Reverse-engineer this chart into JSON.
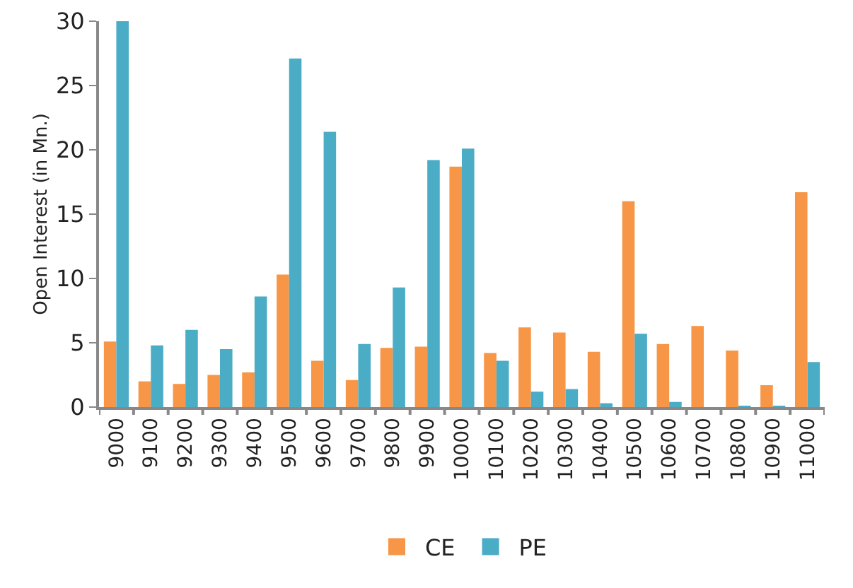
{
  "chart_data": {
    "type": "bar",
    "ylabel": "Open Interest (in Mn.)",
    "categories": [
      "9000",
      "9100",
      "9200",
      "9300",
      "9400",
      "9500",
      "9600",
      "9700",
      "9800",
      "9900",
      "10000",
      "10100",
      "10200",
      "10300",
      "10400",
      "10500",
      "10600",
      "10700",
      "10800",
      "10900",
      "11000"
    ],
    "series": [
      {
        "name": "CE",
        "color": "#f79646",
        "values": [
          5.1,
          2.0,
          1.8,
          2.5,
          2.7,
          10.3,
          3.6,
          2.1,
          4.6,
          4.7,
          18.7,
          4.2,
          6.2,
          5.8,
          4.3,
          16.0,
          4.9,
          6.3,
          4.4,
          1.7,
          16.7
        ]
      },
      {
        "name": "PE",
        "color": "#4bacc6",
        "values": [
          30.0,
          4.8,
          6.0,
          4.5,
          8.6,
          27.1,
          21.4,
          4.9,
          9.3,
          19.2,
          20.1,
          3.6,
          1.2,
          1.4,
          0.3,
          5.7,
          0.4,
          null,
          0.1,
          0.1,
          3.5
        ]
      }
    ],
    "ylim": [
      0,
      30
    ],
    "yticks": [
      0,
      5,
      10,
      15,
      20,
      25,
      30
    ],
    "grid": false,
    "legend": "bottom"
  }
}
